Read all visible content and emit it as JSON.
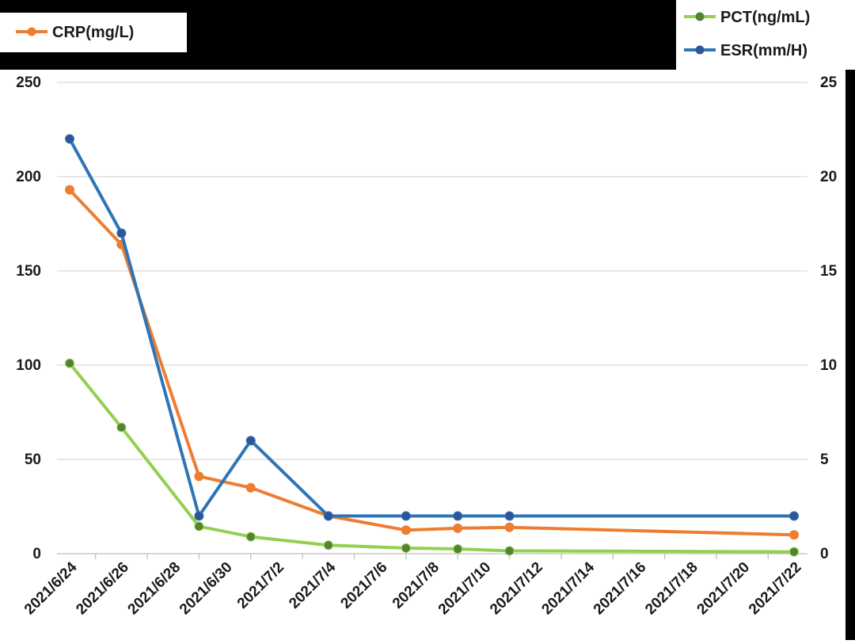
{
  "chart_data": {
    "type": "line",
    "x": [
      "2021/6/24",
      "2021/6/26",
      "2021/6/28",
      "2021/6/30",
      "2021/7/2",
      "2021/7/4",
      "2021/7/6",
      "2021/7/8",
      "2021/7/10",
      "2021/7/12",
      "2021/7/14",
      "2021/7/16",
      "2021/7/18",
      "2021/7/20",
      "2021/7/22"
    ],
    "x_tick_labels": [
      "2021/6/24",
      "2021/6/26",
      "2021/6/28",
      "2021/6/30",
      "2021/7/2",
      "2021/7/4",
      "2021/7/6",
      "2021/7/8",
      "2021/7/10",
      "2021/7/12",
      "2021/7/14",
      "2021/7/16",
      "2021/7/18",
      "2021/7/20",
      "2021/7/22"
    ],
    "y_left": {
      "lim": [
        0,
        250
      ],
      "ticks": [
        "0",
        "50",
        "100",
        "150",
        "200",
        "250"
      ]
    },
    "y_right": {
      "lim": [
        0,
        25
      ],
      "ticks": [
        "0",
        "5",
        "10",
        "15",
        "20",
        "25"
      ]
    },
    "grid": true,
    "series": [
      {
        "name": "CRP(mg/L)",
        "axis": "left",
        "color": "#ed7d31",
        "points": [
          {
            "x": "2021/6/24",
            "y": 193
          },
          {
            "x": "2021/6/26",
            "y": 164
          },
          {
            "x": "2021/6/29",
            "y": 41
          },
          {
            "x": "2021/7/1",
            "y": 35
          },
          {
            "x": "2021/7/4",
            "y": 20
          },
          {
            "x": "2021/7/7",
            "y": 12.5
          },
          {
            "x": "2021/7/9",
            "y": 13.5
          },
          {
            "x": "2021/7/11",
            "y": 14
          },
          {
            "x": "2021/7/22",
            "y": 10
          }
        ]
      },
      {
        "name": "PCT(ng/mL)",
        "axis": "right",
        "color": "#92d050",
        "marker_color": "#548235",
        "points": [
          {
            "x": "2021/6/24",
            "y": 10.1
          },
          {
            "x": "2021/6/26",
            "y": 6.7
          },
          {
            "x": "2021/6/29",
            "y": 1.45
          },
          {
            "x": "2021/7/1",
            "y": 0.9
          },
          {
            "x": "2021/7/4",
            "y": 0.45
          },
          {
            "x": "2021/7/7",
            "y": 0.3
          },
          {
            "x": "2021/7/9",
            "y": 0.25
          },
          {
            "x": "2021/7/11",
            "y": 0.15
          },
          {
            "x": "2021/7/22",
            "y": 0.1
          }
        ]
      },
      {
        "name": "ESR(mm/H)",
        "axis": "right",
        "color": "#2e75b6",
        "marker_color": "#2f5597",
        "points": [
          {
            "x": "2021/6/24",
            "y": 22
          },
          {
            "x": "2021/6/26",
            "y": 17
          },
          {
            "x": "2021/6/29",
            "y": 2
          },
          {
            "x": "2021/7/1",
            "y": 6
          },
          {
            "x": "2021/7/4",
            "y": 2
          },
          {
            "x": "2021/7/7",
            "y": 2
          },
          {
            "x": "2021/7/9",
            "y": 2
          },
          {
            "x": "2021/7/11",
            "y": 2
          },
          {
            "x": "2021/7/22",
            "y": 2
          }
        ]
      }
    ],
    "legends": [
      {
        "label": "CRP(mg/L)",
        "series": 0,
        "placement": "top-left"
      },
      {
        "label": "PCT(ng/mL)",
        "series": 1,
        "placement": "top-right"
      },
      {
        "label": "ESR(mm/H)",
        "series": 2,
        "placement": "top-right"
      }
    ]
  }
}
